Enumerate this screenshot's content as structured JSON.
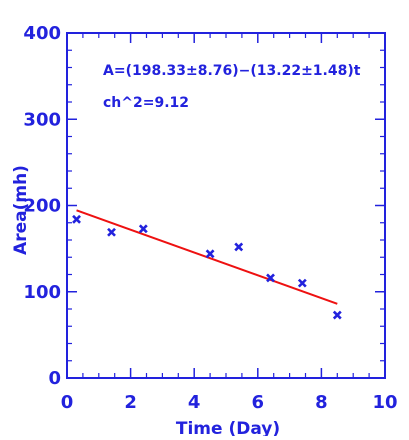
{
  "chart_data": {
    "type": "scatter",
    "title": "",
    "xlabel": "Time (Day)",
    "ylabel": "Area(mh)",
    "xlim": [
      0,
      10
    ],
    "ylim": [
      0,
      400
    ],
    "x_ticks": [
      0,
      2,
      4,
      6,
      8,
      10
    ],
    "y_ticks": [
      0,
      100,
      200,
      300,
      400
    ],
    "x_tick_labels": [
      "0",
      "2",
      "4",
      "6",
      "8",
      "10"
    ],
    "y_tick_labels": [
      "0",
      "100",
      "200",
      "300",
      "400"
    ],
    "grid": false,
    "series": [
      {
        "type": "scatter",
        "marker": "x",
        "color": "#2222dd",
        "x": [
          0.3,
          1.4,
          2.4,
          4.5,
          5.4,
          6.4,
          7.4,
          8.5
        ],
        "y": [
          184,
          169,
          173,
          144,
          152,
          116,
          110,
          73
        ]
      },
      {
        "type": "line",
        "color": "#ee1111",
        "x": [
          0.3,
          8.5
        ],
        "y": [
          194.4,
          86.0
        ]
      }
    ],
    "annotations": [
      {
        "text": "A=(198.33±8.76)−(13.22±1.48)t"
      },
      {
        "text": "ch^2=9.12"
      }
    ],
    "colors": {
      "axis": "#2222dd",
      "text": "#2222dd",
      "points": "#2222dd",
      "fit": "#ee1111"
    }
  }
}
